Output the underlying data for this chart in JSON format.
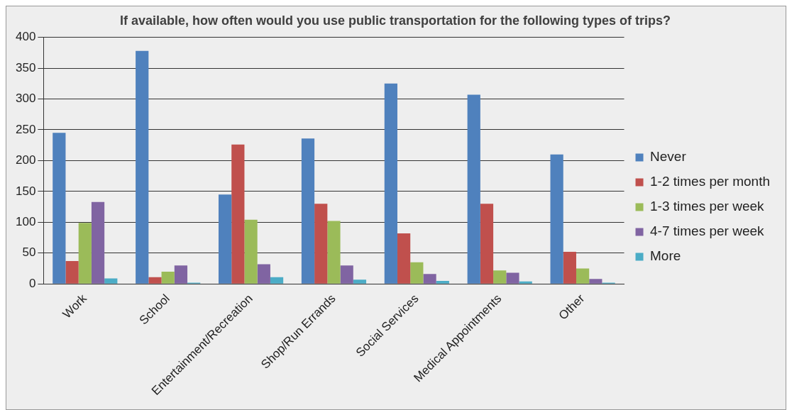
{
  "chart_data": {
    "type": "bar",
    "title": "If available, how often would you use public transportation for the following types of trips?",
    "categories": [
      "Work",
      "School",
      "Entertainment/Recreation",
      "Shop/Run Errands",
      "Social Services",
      "Medical Appointments",
      "Other"
    ],
    "series": [
      {
        "name": "Never",
        "color": "#4f81bd",
        "values": [
          245,
          378,
          145,
          236,
          325,
          307,
          210
        ]
      },
      {
        "name": "1-2 times per month",
        "color": "#c0504d",
        "values": [
          37,
          11,
          226,
          130,
          82,
          130,
          52
        ]
      },
      {
        "name": "1-3 times per week",
        "color": "#9bbb59",
        "values": [
          99,
          20,
          104,
          102,
          35,
          22,
          25
        ]
      },
      {
        "name": "4-7 times per week",
        "color": "#8064a2",
        "values": [
          133,
          30,
          32,
          30,
          16,
          18,
          8
        ]
      },
      {
        "name": "More",
        "color": "#4bacc6",
        "values": [
          9,
          2,
          11,
          7,
          5,
          4,
          2
        ]
      }
    ],
    "ylim": [
      0,
      400
    ],
    "yticks": [
      0,
      50,
      100,
      150,
      200,
      250,
      300,
      350,
      400
    ],
    "grid": "y",
    "legend": "right"
  }
}
